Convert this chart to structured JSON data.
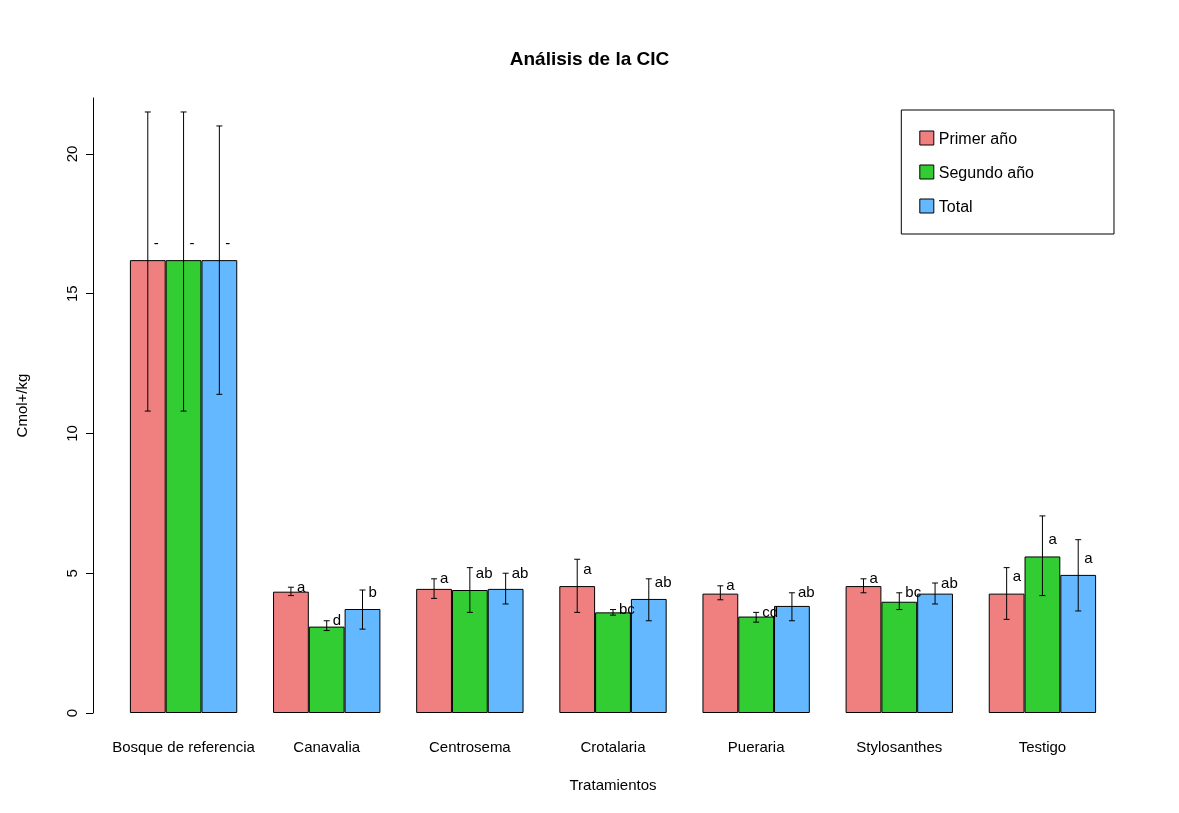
{
  "chart_data": {
    "type": "bar",
    "title": "Análisis de la CIC",
    "xlabel": "Tratamientos",
    "ylabel": "Cmol+/kg",
    "categories": [
      "Bosque de referencia",
      "Canavalia",
      "Centrosema",
      "Crotalaria",
      "Pueraria",
      "Stylosanthes",
      "Testigo"
    ],
    "series": [
      {
        "name": "Primer año",
        "color": "#f08080",
        "values": [
          16.2,
          4.34,
          4.44,
          4.54,
          4.27,
          4.54,
          4.27
        ],
        "errors": [
          [
            10.8,
            21.5
          ],
          [
            4.2,
            4.5
          ],
          [
            4.1,
            4.8
          ],
          [
            3.6,
            5.5
          ],
          [
            4.05,
            4.55
          ],
          [
            4.3,
            4.8
          ],
          [
            3.35,
            5.2
          ]
        ],
        "value_labels": [
          "-",
          "a",
          "a",
          "a",
          "a",
          "a",
          "a"
        ]
      },
      {
        "name": "Segundo año",
        "color": "#32cd32",
        "values": [
          16.2,
          3.09,
          4.4,
          3.6,
          3.45,
          3.98,
          5.6
        ],
        "errors": [
          [
            10.8,
            21.5
          ],
          [
            2.95,
            3.3
          ],
          [
            3.6,
            5.2
          ],
          [
            3.5,
            3.7
          ],
          [
            3.25,
            3.6
          ],
          [
            3.7,
            4.3
          ],
          [
            4.2,
            7.05
          ]
        ],
        "value_labels": [
          "-",
          "d",
          "ab",
          "bc",
          "cd",
          "bc",
          "a"
        ]
      },
      {
        "name": "Total",
        "color": "#63b8ff",
        "values": [
          16.2,
          3.72,
          4.44,
          4.08,
          3.83,
          4.27,
          4.94
        ],
        "errors": [
          [
            11.4,
            21.0
          ],
          [
            3.0,
            4.4
          ],
          [
            3.9,
            5.0
          ],
          [
            3.3,
            4.8
          ],
          [
            3.3,
            4.3
          ],
          [
            3.9,
            4.65
          ],
          [
            3.65,
            6.2
          ]
        ],
        "value_labels": [
          "-",
          "b",
          "ab",
          "ab",
          "ab",
          "ab",
          "a"
        ]
      }
    ],
    "ylim": [
      0,
      22
    ],
    "yticks": [
      0,
      5,
      10,
      15,
      20
    ],
    "legend": "top right"
  }
}
